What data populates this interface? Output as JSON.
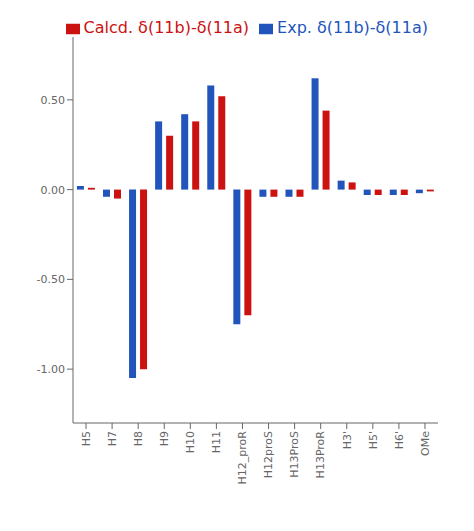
{
  "chart_data": {
    "type": "bar",
    "categories": [
      "H5",
      "H7",
      "H8",
      "H9",
      "H10",
      "H11",
      "H12_proR",
      "H12proS",
      "H13ProS",
      "H13ProR",
      "H3'",
      "H5'",
      "H6'",
      "OMe"
    ],
    "series": [
      {
        "name": "Exp. δ(11b)-δ(11a)",
        "color": "#2255bb",
        "values": [
          0.02,
          -0.04,
          -1.05,
          0.38,
          0.42,
          0.58,
          -0.75,
          -0.04,
          -0.04,
          0.62,
          0.05,
          -0.03,
          -0.03,
          -0.02
        ]
      },
      {
        "name": "Calcd. δ(11b)-δ(11a)",
        "color": "#cc1111",
        "values": [
          0.01,
          -0.05,
          -1.0,
          0.3,
          0.38,
          0.52,
          -0.7,
          -0.04,
          -0.04,
          0.44,
          0.04,
          -0.03,
          -0.03,
          -0.01
        ]
      }
    ],
    "ylim": [
      -1.3,
      0.85
    ],
    "yticks": [
      {
        "value": -1.0,
        "label": "-1.00"
      },
      {
        "value": -0.5,
        "label": "-0.50"
      },
      {
        "value": 0.0,
        "label": "0.00"
      },
      {
        "value": 0.5,
        "label": "0.50"
      }
    ],
    "grid": false,
    "legend": "upper right"
  }
}
